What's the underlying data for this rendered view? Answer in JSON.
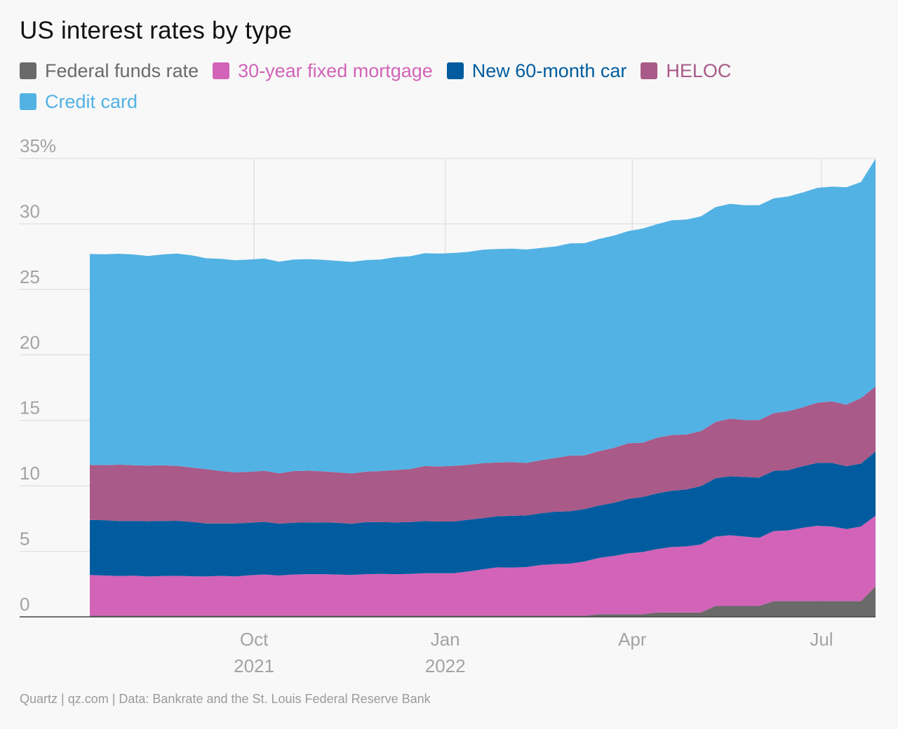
{
  "title": "US interest rates by type",
  "source": "Quartz | qz.com | Data: Bankrate and the St. Louis Federal Reserve Bank",
  "chart_data": {
    "type": "area",
    "stacked": true,
    "x": [
      "2021-07-14",
      "2021-07-21",
      "2021-07-28",
      "2021-08-04",
      "2021-08-11",
      "2021-08-18",
      "2021-08-25",
      "2021-09-01",
      "2021-09-08",
      "2021-09-15",
      "2021-09-22",
      "2021-09-29",
      "2021-10-06",
      "2021-10-13",
      "2021-10-20",
      "2021-10-27",
      "2021-11-03",
      "2021-11-10",
      "2021-11-17",
      "2021-11-24",
      "2021-12-01",
      "2021-12-08",
      "2021-12-15",
      "2021-12-22",
      "2021-12-29",
      "2022-01-05",
      "2022-01-12",
      "2022-01-19",
      "2022-01-26",
      "2022-02-02",
      "2022-02-09",
      "2022-02-16",
      "2022-02-23",
      "2022-03-02",
      "2022-03-09",
      "2022-03-16",
      "2022-03-23",
      "2022-03-30",
      "2022-04-06",
      "2022-04-13",
      "2022-04-20",
      "2022-04-27",
      "2022-05-04",
      "2022-05-11",
      "2022-05-18",
      "2022-05-25",
      "2022-06-01",
      "2022-06-08",
      "2022-06-15",
      "2022-06-22",
      "2022-06-29",
      "2022-07-06",
      "2022-07-13",
      "2022-07-20",
      "2022-07-27"
    ],
    "series": [
      {
        "name": "Federal funds rate",
        "color": "#6a6a6a",
        "values": [
          0.08,
          0.08,
          0.08,
          0.08,
          0.08,
          0.08,
          0.08,
          0.08,
          0.08,
          0.08,
          0.08,
          0.08,
          0.08,
          0.08,
          0.08,
          0.08,
          0.08,
          0.08,
          0.08,
          0.08,
          0.08,
          0.08,
          0.08,
          0.08,
          0.08,
          0.08,
          0.08,
          0.08,
          0.08,
          0.08,
          0.08,
          0.08,
          0.08,
          0.08,
          0.08,
          0.2,
          0.2,
          0.2,
          0.2,
          0.33,
          0.33,
          0.33,
          0.33,
          0.83,
          0.83,
          0.83,
          0.83,
          1.2,
          1.2,
          1.2,
          1.2,
          1.2,
          1.2,
          1.2,
          2.33
        ]
      },
      {
        "name": "30-year fixed mortgage",
        "color": "#d263b8",
        "values": [
          3.12,
          3.08,
          3.04,
          3.06,
          3.0,
          3.04,
          3.05,
          3.02,
          3.0,
          3.05,
          3.0,
          3.1,
          3.15,
          3.08,
          3.15,
          3.18,
          3.18,
          3.15,
          3.12,
          3.18,
          3.2,
          3.18,
          3.2,
          3.25,
          3.25,
          3.25,
          3.38,
          3.55,
          3.7,
          3.68,
          3.72,
          3.88,
          3.95,
          3.98,
          4.15,
          4.3,
          4.45,
          4.65,
          4.75,
          4.85,
          5.0,
          5.05,
          5.2,
          5.3,
          5.4,
          5.3,
          5.2,
          5.35,
          5.4,
          5.6,
          5.75,
          5.7,
          5.5,
          5.7,
          5.4
        ]
      },
      {
        "name": "New 60-month car",
        "color": "#005c9e",
        "values": [
          4.2,
          4.22,
          4.2,
          4.18,
          4.22,
          4.2,
          4.2,
          4.15,
          4.05,
          4.0,
          4.05,
          4.0,
          4.02,
          3.95,
          3.95,
          3.95,
          3.95,
          3.95,
          3.9,
          3.98,
          3.95,
          3.95,
          3.95,
          3.98,
          3.95,
          3.95,
          3.95,
          3.9,
          3.9,
          3.95,
          3.95,
          3.95,
          4.0,
          4.0,
          4.0,
          4.0,
          4.05,
          4.15,
          4.2,
          4.25,
          4.3,
          4.35,
          4.45,
          4.45,
          4.5,
          4.55,
          4.6,
          4.6,
          4.6,
          4.7,
          4.8,
          4.85,
          4.8,
          4.8,
          4.9
        ]
      },
      {
        "name": "HELOC",
        "color": "#a95a88",
        "values": [
          4.2,
          4.2,
          4.3,
          4.25,
          4.25,
          4.25,
          4.2,
          4.15,
          4.15,
          4.0,
          3.9,
          3.9,
          3.9,
          3.85,
          3.95,
          3.95,
          3.9,
          3.85,
          3.85,
          3.85,
          3.9,
          4.0,
          4.05,
          4.2,
          4.2,
          4.25,
          4.2,
          4.2,
          4.1,
          4.1,
          4.0,
          4.05,
          4.1,
          4.25,
          4.1,
          4.15,
          4.2,
          4.25,
          4.15,
          4.25,
          4.25,
          4.2,
          4.2,
          4.3,
          4.4,
          4.35,
          4.4,
          4.4,
          4.5,
          4.5,
          4.6,
          4.7,
          4.7,
          5.0,
          4.95
        ]
      },
      {
        "name": "Credit card",
        "color": "#52b2e4",
        "values": [
          16.1,
          16.1,
          16.1,
          16.1,
          16.0,
          16.1,
          16.2,
          16.2,
          16.1,
          16.2,
          16.2,
          16.2,
          16.2,
          16.15,
          16.15,
          16.15,
          16.15,
          16.15,
          16.15,
          16.15,
          16.15,
          16.25,
          16.25,
          16.25,
          16.25,
          16.25,
          16.25,
          16.3,
          16.3,
          16.3,
          16.3,
          16.2,
          16.15,
          16.2,
          16.2,
          16.2,
          16.2,
          16.2,
          16.35,
          16.3,
          16.4,
          16.4,
          16.4,
          16.4,
          16.4,
          16.4,
          16.4,
          16.4,
          16.4,
          16.4,
          16.4,
          16.4,
          16.6,
          16.5,
          17.4
        ]
      }
    ],
    "ylim": [
      0,
      35
    ],
    "yticks": [
      0,
      5,
      10,
      15,
      20,
      25,
      30,
      35
    ],
    "ytick_labels": [
      "0",
      "5",
      "10",
      "15",
      "20",
      "25",
      "30",
      "35%"
    ],
    "xticks": [
      {
        "date": "2021-10-01",
        "labels": [
          "Oct",
          "2021"
        ]
      },
      {
        "date": "2022-01-01",
        "labels": [
          "Jan",
          "2022"
        ]
      },
      {
        "date": "2022-04-01",
        "labels": [
          "Apr"
        ]
      },
      {
        "date": "2022-07-01",
        "labels": [
          "Jul"
        ]
      }
    ],
    "grid": true,
    "legend_position": "top"
  }
}
